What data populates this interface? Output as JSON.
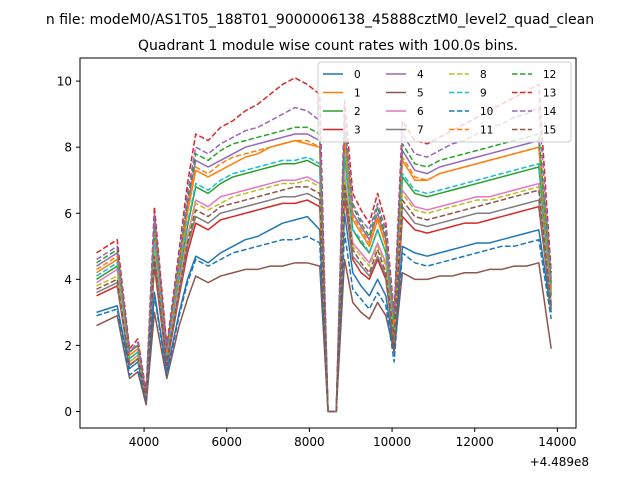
{
  "figure": {
    "suptitle": "n file: modeM0/AS1T05_188T01_9000006138_45888cztM0_level2_quad_clean",
    "title": "Quadrant 1 module wise count rates with 100.0s bins.",
    "offset_text": "+4.489e8"
  },
  "chart_data": {
    "type": "line",
    "title": "Quadrant 1 module wise count rates with 100.0s bins.",
    "xlabel": "",
    "ylabel": "",
    "x_offset": 448900000,
    "xlim": [
      2450,
      14450
    ],
    "ylim": [
      -0.5,
      10.7
    ],
    "xticks": [
      4000,
      6000,
      8000,
      10000,
      12000,
      14000
    ],
    "xtick_labels": [
      "4000",
      "6000",
      "8000",
      "10000",
      "12000",
      "14000"
    ],
    "yticks": [
      0,
      2,
      4,
      6,
      8,
      10
    ],
    "ytick_labels": [
      "0",
      "2",
      "4",
      "6",
      "8",
      "10"
    ],
    "grid": false,
    "legend_position": "upper-right",
    "legend_columns": 4,
    "x": [
      2850,
      3350,
      3650,
      3850,
      4050,
      4250,
      4550,
      4850,
      5050,
      5250,
      5550,
      5850,
      6150,
      6450,
      6750,
      7050,
      7350,
      7650,
      7950,
      8250,
      8450,
      8650,
      8850,
      9050,
      9250,
      9450,
      9650,
      9850,
      10050,
      10250,
      10550,
      10850,
      11150,
      11450,
      11750,
      12050,
      12350,
      12650,
      12950,
      13250,
      13550,
      13850
    ],
    "series": [
      {
        "name": "0",
        "color": "#1f77b4",
        "dash": "solid",
        "values": [
          3.0,
          3.2,
          1.3,
          1.5,
          0.3,
          3.6,
          1.2,
          3.0,
          4.0,
          4.7,
          4.5,
          4.8,
          5.0,
          5.2,
          5.3,
          5.5,
          5.7,
          5.8,
          5.9,
          5.5,
          0.0,
          0.0,
          6.0,
          4.2,
          3.8,
          3.5,
          4.0,
          3.5,
          1.8,
          5.0,
          4.8,
          4.7,
          4.8,
          4.9,
          5.0,
          5.1,
          5.1,
          5.2,
          5.3,
          5.4,
          5.5,
          3.0
        ]
      },
      {
        "name": "1",
        "color": "#ff7f0e",
        "dash": "solid",
        "values": [
          4.2,
          4.6,
          1.7,
          1.9,
          0.5,
          5.5,
          1.7,
          4.3,
          6.0,
          7.3,
          7.1,
          7.3,
          7.5,
          7.7,
          7.8,
          8.0,
          8.1,
          8.2,
          8.1,
          8.0,
          0.0,
          0.0,
          8.2,
          5.8,
          5.4,
          5.0,
          5.8,
          5.0,
          2.6,
          7.6,
          7.0,
          7.0,
          7.2,
          7.3,
          7.4,
          7.5,
          7.6,
          7.7,
          7.8,
          7.9,
          8.0,
          3.7
        ]
      },
      {
        "name": "2",
        "color": "#2ca02c",
        "dash": "solid",
        "values": [
          4.0,
          4.4,
          1.6,
          1.8,
          0.5,
          5.2,
          1.6,
          4.1,
          5.6,
          6.8,
          6.6,
          6.9,
          7.1,
          7.2,
          7.3,
          7.4,
          7.5,
          7.5,
          7.6,
          7.4,
          0.0,
          0.0,
          7.7,
          5.5,
          5.1,
          4.8,
          5.5,
          4.8,
          2.4,
          7.1,
          6.6,
          6.5,
          6.6,
          6.7,
          6.8,
          6.9,
          7.0,
          7.1,
          7.2,
          7.3,
          7.4,
          3.5
        ]
      },
      {
        "name": "3",
        "color": "#d62728",
        "dash": "solid",
        "values": [
          3.5,
          3.8,
          1.4,
          1.6,
          0.4,
          4.4,
          1.4,
          3.5,
          4.8,
          5.7,
          5.5,
          5.8,
          5.9,
          6.0,
          6.1,
          6.2,
          6.3,
          6.3,
          6.4,
          6.2,
          0.0,
          0.0,
          6.5,
          4.6,
          4.2,
          4.0,
          4.6,
          4.0,
          2.0,
          5.9,
          5.5,
          5.4,
          5.5,
          5.6,
          5.7,
          5.7,
          5.8,
          5.9,
          6.0,
          6.1,
          6.2,
          3.1
        ]
      },
      {
        "name": "4",
        "color": "#9467bd",
        "dash": "solid",
        "values": [
          4.4,
          4.8,
          1.8,
          2.0,
          0.5,
          5.7,
          1.8,
          4.5,
          6.2,
          7.6,
          7.4,
          7.6,
          7.8,
          8.0,
          8.1,
          8.2,
          8.3,
          8.4,
          8.4,
          8.2,
          0.0,
          0.0,
          8.5,
          6.0,
          5.6,
          5.2,
          6.0,
          5.2,
          2.7,
          7.9,
          7.3,
          7.2,
          7.4,
          7.5,
          7.6,
          7.7,
          7.8,
          7.9,
          8.0,
          8.1,
          8.2,
          3.8
        ]
      },
      {
        "name": "5",
        "color": "#8c564b",
        "dash": "solid",
        "values": [
          2.6,
          2.9,
          1.0,
          1.2,
          0.2,
          3.0,
          1.0,
          2.6,
          3.4,
          4.1,
          3.9,
          4.1,
          4.2,
          4.3,
          4.3,
          4.4,
          4.4,
          4.5,
          4.5,
          4.4,
          0.0,
          0.0,
          4.6,
          3.3,
          3.0,
          2.8,
          3.3,
          2.9,
          1.8,
          4.2,
          4.0,
          4.0,
          4.1,
          4.1,
          4.2,
          4.2,
          4.3,
          4.3,
          4.4,
          4.4,
          4.5,
          1.9
        ]
      },
      {
        "name": "6",
        "color": "#e377c2",
        "dash": "solid",
        "values": [
          3.9,
          4.3,
          1.5,
          1.7,
          0.4,
          5.0,
          1.6,
          3.9,
          5.3,
          6.4,
          6.2,
          6.5,
          6.6,
          6.7,
          6.8,
          6.9,
          7.0,
          7.0,
          7.1,
          6.9,
          0.0,
          0.0,
          7.2,
          5.1,
          4.8,
          4.5,
          5.1,
          4.5,
          2.3,
          6.7,
          6.2,
          6.1,
          6.2,
          6.3,
          6.4,
          6.5,
          6.5,
          6.6,
          6.7,
          6.8,
          6.9,
          3.3
        ]
      },
      {
        "name": "7",
        "color": "#7f7f7f",
        "dash": "solid",
        "values": [
          3.6,
          3.9,
          1.4,
          1.6,
          0.4,
          4.6,
          1.5,
          3.6,
          5.0,
          5.9,
          5.7,
          6.0,
          6.1,
          6.2,
          6.3,
          6.4,
          6.5,
          6.5,
          6.6,
          6.4,
          0.0,
          0.0,
          6.7,
          4.7,
          4.4,
          4.1,
          4.7,
          4.1,
          2.1,
          6.2,
          5.7,
          5.6,
          5.7,
          5.8,
          5.9,
          6.0,
          6.0,
          6.1,
          6.2,
          6.3,
          6.4,
          3.1
        ]
      },
      {
        "name": "8",
        "color": "#bcbd22",
        "dash": "dashed",
        "values": [
          3.8,
          4.1,
          1.5,
          1.7,
          0.4,
          4.9,
          1.5,
          3.8,
          5.2,
          6.3,
          6.1,
          6.3,
          6.5,
          6.6,
          6.7,
          6.8,
          6.9,
          6.9,
          7.0,
          6.8,
          0.0,
          0.0,
          7.1,
          5.0,
          4.7,
          4.4,
          5.0,
          4.4,
          2.2,
          6.6,
          6.1,
          6.0,
          6.1,
          6.2,
          6.3,
          6.4,
          6.4,
          6.5,
          6.6,
          6.7,
          6.8,
          3.3
        ]
      },
      {
        "name": "9",
        "color": "#17becf",
        "dash": "dashed",
        "values": [
          4.1,
          4.5,
          1.6,
          1.8,
          0.5,
          5.3,
          1.7,
          4.2,
          5.7,
          6.9,
          6.7,
          7.0,
          7.2,
          7.3,
          7.4,
          7.5,
          7.6,
          7.6,
          7.7,
          7.5,
          0.0,
          0.0,
          7.8,
          5.5,
          5.2,
          4.8,
          5.5,
          4.8,
          2.5,
          7.2,
          6.7,
          6.6,
          6.7,
          6.8,
          6.9,
          7.0,
          7.1,
          7.2,
          7.3,
          7.4,
          7.5,
          3.6
        ]
      },
      {
        "name": "10",
        "color": "#1f77b4",
        "dash": "dashed",
        "values": [
          2.9,
          3.1,
          1.1,
          1.3,
          0.3,
          3.5,
          1.1,
          2.9,
          3.9,
          4.6,
          4.4,
          4.6,
          4.8,
          4.9,
          5.0,
          5.1,
          5.2,
          5.2,
          5.3,
          5.1,
          0.0,
          0.0,
          5.4,
          3.7,
          3.4,
          3.1,
          3.6,
          3.2,
          1.5,
          4.8,
          4.5,
          4.4,
          4.5,
          4.6,
          4.7,
          4.8,
          4.9,
          5.0,
          5.0,
          5.1,
          5.2,
          2.8
        ]
      },
      {
        "name": "11",
        "color": "#ff7f0e",
        "dash": "dashed",
        "values": [
          4.3,
          4.7,
          1.7,
          1.9,
          0.5,
          5.6,
          1.8,
          4.4,
          6.1,
          7.4,
          7.2,
          7.5,
          7.7,
          7.8,
          7.9,
          8.0,
          8.1,
          8.2,
          8.2,
          8.0,
          0.0,
          0.0,
          8.3,
          5.9,
          5.5,
          5.1,
          5.9,
          5.1,
          2.6,
          7.7,
          7.1,
          7.0,
          7.2,
          7.3,
          7.4,
          7.5,
          7.6,
          7.7,
          7.8,
          7.9,
          8.0,
          3.7
        ]
      },
      {
        "name": "12",
        "color": "#2ca02c",
        "dash": "dashed",
        "values": [
          4.5,
          4.9,
          1.8,
          2.0,
          0.5,
          5.8,
          1.9,
          4.6,
          6.4,
          7.8,
          7.6,
          7.9,
          8.1,
          8.2,
          8.3,
          8.4,
          8.5,
          8.6,
          8.6,
          8.4,
          0.0,
          0.0,
          8.7,
          6.2,
          5.7,
          5.3,
          6.2,
          5.3,
          2.8,
          8.1,
          7.5,
          7.4,
          7.6,
          7.7,
          7.8,
          7.9,
          8.0,
          8.1,
          8.2,
          8.3,
          8.4,
          3.9
        ]
      },
      {
        "name": "13",
        "color": "#d62728",
        "dash": "dashed",
        "values": [
          4.8,
          5.2,
          1.9,
          2.2,
          0.6,
          6.2,
          2.0,
          4.9,
          6.9,
          8.4,
          8.2,
          8.6,
          8.8,
          9.1,
          9.3,
          9.6,
          9.9,
          10.1,
          9.9,
          9.6,
          0.0,
          0.0,
          9.4,
          6.6,
          6.1,
          5.7,
          6.6,
          5.7,
          3.0,
          8.8,
          8.2,
          8.1,
          8.3,
          8.5,
          8.7,
          8.9,
          9.1,
          9.3,
          9.5,
          9.7,
          9.9,
          4.2
        ]
      },
      {
        "name": "14",
        "color": "#9467bd",
        "dash": "dashed",
        "values": [
          4.6,
          5.0,
          1.8,
          2.1,
          0.5,
          6.0,
          1.9,
          4.7,
          6.6,
          8.0,
          7.8,
          8.1,
          8.3,
          8.5,
          8.6,
          8.8,
          9.0,
          9.2,
          9.1,
          8.8,
          0.0,
          0.0,
          8.9,
          6.3,
          5.8,
          5.5,
          6.3,
          5.5,
          2.9,
          8.4,
          7.8,
          7.7,
          7.9,
          8.1,
          8.2,
          8.4,
          8.6,
          8.7,
          8.9,
          9.0,
          9.2,
          4.0
        ]
      },
      {
        "name": "15",
        "color": "#8c564b",
        "dash": "dashed",
        "values": [
          3.7,
          4.0,
          1.4,
          1.6,
          0.4,
          4.7,
          1.5,
          3.7,
          5.1,
          6.1,
          5.9,
          6.2,
          6.3,
          6.4,
          6.5,
          6.6,
          6.7,
          6.8,
          6.8,
          6.6,
          0.0,
          0.0,
          6.9,
          4.9,
          4.5,
          4.2,
          4.9,
          4.2,
          2.2,
          6.4,
          5.9,
          5.8,
          5.9,
          6.0,
          6.1,
          6.2,
          6.3,
          6.4,
          6.5,
          6.6,
          6.7,
          3.2
        ]
      }
    ]
  }
}
